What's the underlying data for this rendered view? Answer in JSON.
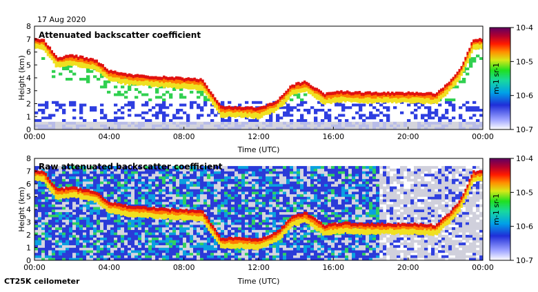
{
  "date": "17 Aug 2020",
  "footer": "CT25K ceilometer",
  "chart_data": [
    {
      "type": "heatmap",
      "title": "Attenuated backscatter coefficient",
      "xlabel": "Time (UTC)",
      "ylabel": "Height (km)",
      "x_ticks": [
        "00:00",
        "04:00",
        "08:00",
        "12:00",
        "16:00",
        "20:00",
        "00:00"
      ],
      "y_ticks": [
        "0",
        "1",
        "2",
        "3",
        "4",
        "5",
        "6",
        "7",
        "8"
      ],
      "xlim_hours": [
        0,
        24
      ],
      "ylim_km": [
        0,
        8
      ],
      "colorbar": {
        "scale": "log",
        "ticks": [
          "10-7",
          "10-6",
          "10-5",
          "10-4"
        ],
        "label": "m-1 sr-1",
        "range": [
          1e-07,
          0.0001
        ]
      },
      "cloud_layer_km": [
        [
          0.0,
          6.8
        ],
        [
          0.5,
          6.7
        ],
        [
          1.2,
          5.3
        ],
        [
          2.0,
          5.5
        ],
        [
          2.7,
          5.3
        ],
        [
          3.3,
          5.1
        ],
        [
          4.0,
          4.3
        ],
        [
          5.0,
          4.0
        ],
        [
          6.0,
          3.9
        ],
        [
          7.0,
          3.8
        ],
        [
          8.0,
          3.7
        ],
        [
          9.0,
          3.6
        ],
        [
          10.0,
          1.5
        ],
        [
          11.0,
          1.5
        ],
        [
          12.0,
          1.4
        ],
        [
          13.0,
          2.0
        ],
        [
          13.8,
          3.2
        ],
        [
          14.5,
          3.5
        ],
        [
          15.5,
          2.5
        ],
        [
          16.5,
          2.7
        ],
        [
          17.5,
          2.6
        ],
        [
          18.5,
          2.6
        ],
        [
          19.5,
          2.6
        ],
        [
          20.5,
          2.6
        ],
        [
          21.5,
          2.5
        ],
        [
          22.3,
          3.6
        ],
        [
          22.8,
          4.5
        ],
        [
          23.5,
          6.7
        ],
        [
          24.0,
          6.8
        ]
      ]
    },
    {
      "type": "heatmap",
      "title": "Raw attenuated backscatter coefficient",
      "xlabel": "Time (UTC)",
      "ylabel": "Height (km)",
      "x_ticks": [
        "00:00",
        "04:00",
        "08:00",
        "12:00",
        "16:00",
        "20:00",
        "00:00"
      ],
      "y_ticks": [
        "0",
        "1",
        "2",
        "3",
        "4",
        "5",
        "6",
        "7",
        "8"
      ],
      "xlim_hours": [
        0,
        24
      ],
      "ylim_km": [
        0,
        8
      ],
      "colorbar": {
        "scale": "log",
        "ticks": [
          "10-7",
          "10-6",
          "10-5",
          "10-4"
        ],
        "label": "m-1 sr-1",
        "range": [
          1e-07,
          0.0001
        ]
      },
      "cloud_layer_km": [
        [
          0.0,
          6.8
        ],
        [
          0.5,
          6.7
        ],
        [
          1.2,
          5.3
        ],
        [
          2.0,
          5.5
        ],
        [
          2.7,
          5.3
        ],
        [
          3.3,
          5.1
        ],
        [
          4.0,
          4.3
        ],
        [
          5.0,
          4.0
        ],
        [
          6.0,
          3.9
        ],
        [
          7.0,
          3.8
        ],
        [
          8.0,
          3.7
        ],
        [
          9.0,
          3.6
        ],
        [
          10.0,
          1.5
        ],
        [
          11.0,
          1.5
        ],
        [
          12.0,
          1.4
        ],
        [
          13.0,
          2.0
        ],
        [
          13.8,
          3.2
        ],
        [
          14.5,
          3.5
        ],
        [
          15.5,
          2.5
        ],
        [
          16.5,
          2.7
        ],
        [
          17.5,
          2.6
        ],
        [
          18.5,
          2.6
        ],
        [
          19.5,
          2.6
        ],
        [
          20.5,
          2.6
        ],
        [
          21.5,
          2.5
        ],
        [
          22.3,
          3.6
        ],
        [
          22.8,
          4.5
        ],
        [
          23.5,
          6.7
        ],
        [
          24.0,
          6.8
        ]
      ]
    }
  ]
}
